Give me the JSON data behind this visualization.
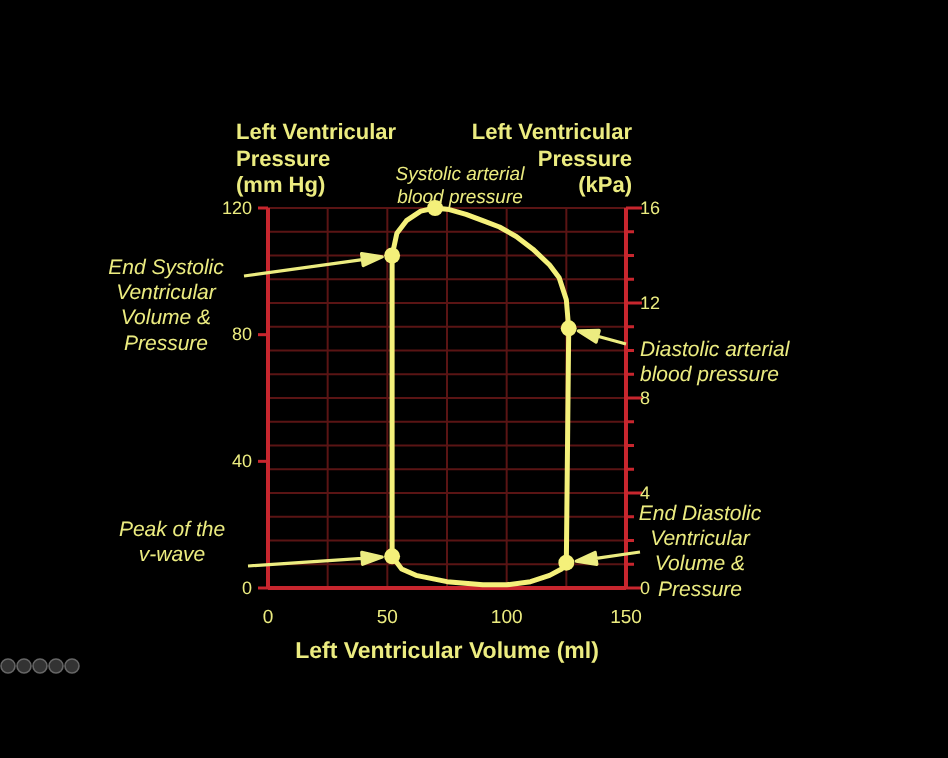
{
  "chart_data": {
    "type": "line",
    "xlabel": "Left Ventricular Volume (ml)",
    "ylabel": "Left Ventricular Pressure (mm Hg)",
    "y2label": "Left Ventricular Pressure (kPa)",
    "xlim": [
      0,
      150
    ],
    "xticks": [
      0,
      {
        "value": 25,
        "label": null
      },
      50,
      {
        "value": 75,
        "label": null
      },
      100,
      {
        "value": 125,
        "label": null
      },
      150
    ],
    "ylim": [
      0,
      120
    ],
    "yticks": [
      0,
      40,
      80,
      120
    ],
    "y2lim": [
      0,
      16
    ],
    "y2ticks": [
      0,
      {
        "value": 1,
        "label": null
      },
      {
        "value": 2,
        "label": null
      },
      {
        "value": 3,
        "label": null
      },
      4,
      {
        "value": 5,
        "label": null
      },
      {
        "value": 6,
        "label": null
      },
      {
        "value": 7,
        "label": null
      },
      8,
      {
        "value": 9,
        "label": null
      },
      {
        "value": 10,
        "label": null
      },
      {
        "value": 11,
        "label": null
      },
      12,
      {
        "value": 13,
        "label": null
      },
      {
        "value": 14,
        "label": null
      },
      {
        "value": 15,
        "label": null
      },
      16
    ],
    "grid": true,
    "series": [
      {
        "color": "#f4f07a",
        "marker": "none",
        "x": [
          52,
          56,
          62,
          75,
          90,
          100,
          110,
          118,
          123,
          125,
          126
        ],
        "values": [
          10,
          6,
          4,
          2,
          1,
          1,
          2,
          4,
          6,
          8,
          82
        ]
      },
      {
        "color": "#f4f07a",
        "marker": "none",
        "x": [
          52,
          54,
          58,
          64,
          70,
          76,
          83,
          90,
          97,
          104,
          111,
          118,
          122,
          125,
          126
        ],
        "values": [
          105,
          112,
          116,
          119,
          120,
          119.5,
          118,
          116,
          114,
          111,
          107,
          102,
          98,
          91,
          82
        ]
      },
      {
        "color": "#f4f07a",
        "marker": "none",
        "x": [
          52,
          52
        ],
        "values": [
          10,
          105
        ]
      },
      {
        "type": "scatter",
        "color": "#f4f07a",
        "marker": "circle",
        "x": [
          52,
          52,
          70,
          126,
          125
        ],
        "values": [
          10,
          105,
          120,
          82,
          8
        ]
      }
    ],
    "annotations": [
      "Peak of the v-wave",
      "End Systolic Ventricular Volume & Pressure",
      "Systolic arterial blood pressure",
      "Diastolic arterial blood pressure",
      "End Diastolic Ventricular Volume & Pressure"
    ]
  }
}
